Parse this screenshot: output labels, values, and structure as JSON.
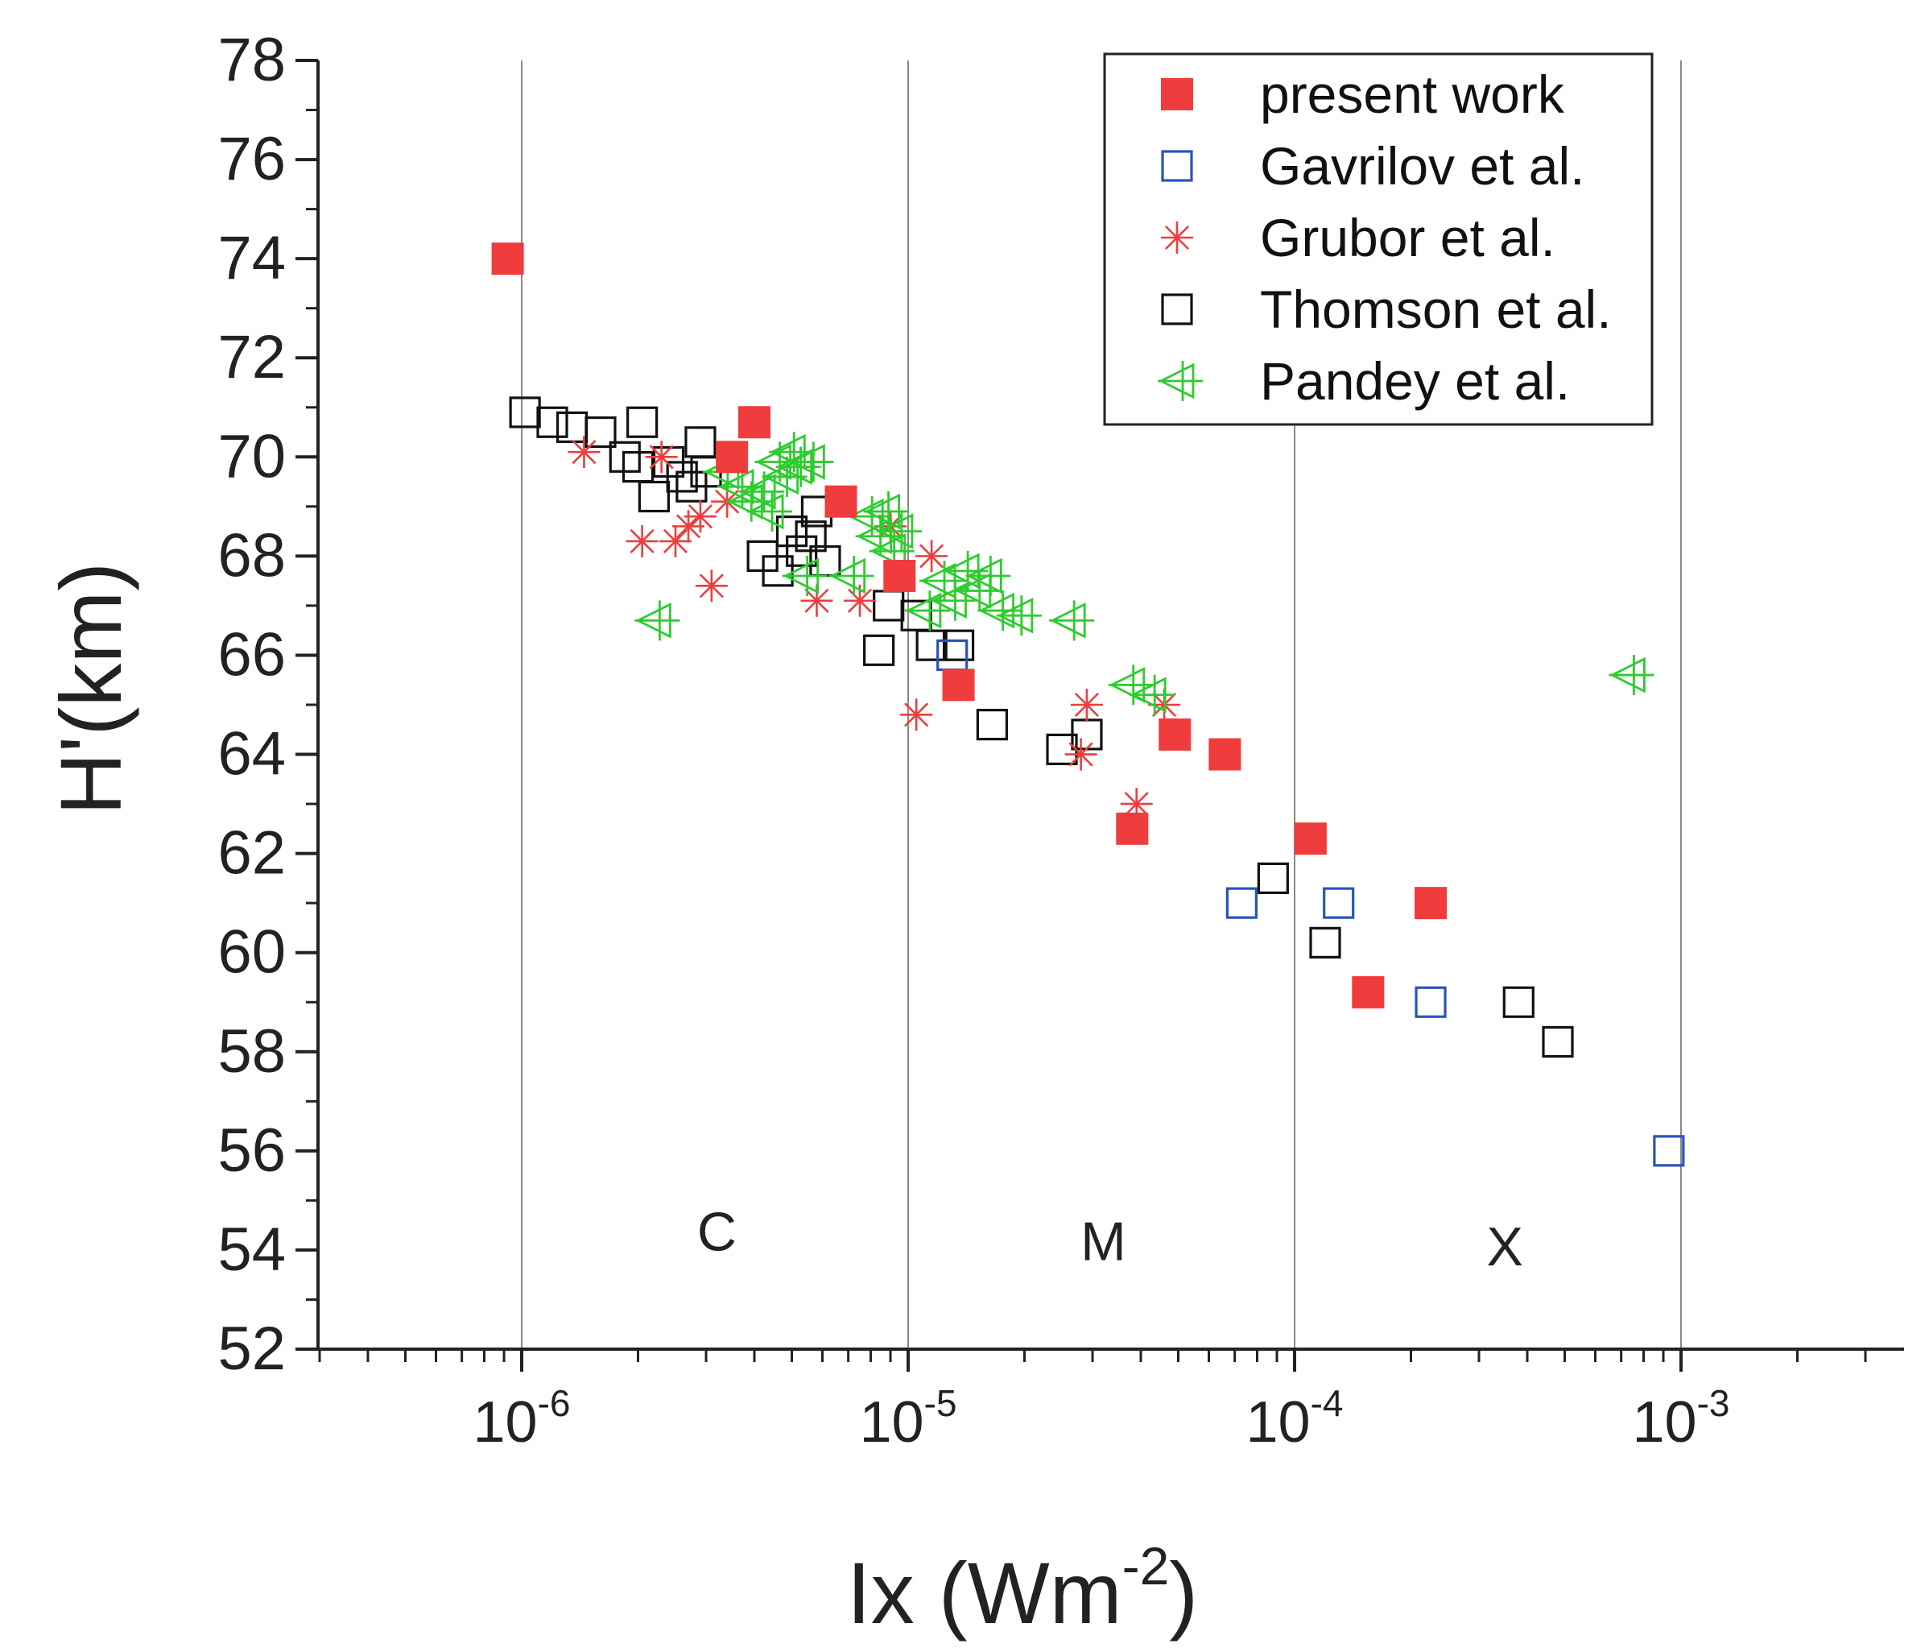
{
  "chart_data": {
    "type": "scatter",
    "title": "",
    "xlabel": "Ix  (Wm-2)",
    "xlabel_base": "Ix  (Wm",
    "xlabel_sup": "-2",
    "xlabel_end": ")",
    "ylabel": "H'(km)",
    "x_scale": "log",
    "xlim": [
      3e-07,
      0.004
    ],
    "ylim": [
      52,
      78
    ],
    "x_ticks": [
      {
        "value": 1e-06,
        "base": "10",
        "exp": "-6"
      },
      {
        "value": 1e-05,
        "base": "10",
        "exp": "-5"
      },
      {
        "value": 0.0001,
        "base": "10",
        "exp": "-4"
      },
      {
        "value": 0.001,
        "base": "10",
        "exp": "-3"
      }
    ],
    "y_ticks": [
      52,
      54,
      56,
      58,
      60,
      62,
      64,
      66,
      68,
      70,
      72,
      74,
      76,
      78
    ],
    "vertical_gridlines": [
      1e-06,
      1e-05,
      0.0001,
      0.001
    ],
    "region_labels": [
      {
        "text": "C",
        "x": 3.2e-06,
        "y": 54.4
      },
      {
        "text": "M",
        "x": 3.2e-05,
        "y": 54.2
      },
      {
        "text": "X",
        "x": 0.00035,
        "y": 54.1
      }
    ],
    "legend_position": "top-right",
    "series": [
      {
        "name": "present work",
        "marker": "filled-square",
        "color": "#f03c3c",
        "points": [
          {
            "x": 9.2e-07,
            "y": 74.0
          },
          {
            "x": 3.5e-06,
            "y": 70.0
          },
          {
            "x": 4e-06,
            "y": 70.7
          },
          {
            "x": 6.7e-06,
            "y": 69.1
          },
          {
            "x": 9.5e-06,
            "y": 67.6
          },
          {
            "x": 1.35e-05,
            "y": 65.4
          },
          {
            "x": 3.8e-05,
            "y": 62.5
          },
          {
            "x": 4.9e-05,
            "y": 64.4
          },
          {
            "x": 6.6e-05,
            "y": 64.0
          },
          {
            "x": 0.00011,
            "y": 62.3
          },
          {
            "x": 0.000155,
            "y": 59.2
          },
          {
            "x": 0.000225,
            "y": 61.0
          }
        ]
      },
      {
        "name": "Gavrilov et al.",
        "marker": "open-square",
        "color": "#2a52be",
        "points": [
          {
            "x": 1.3e-05,
            "y": 66.0
          },
          {
            "x": 7.3e-05,
            "y": 61.0
          },
          {
            "x": 0.00013,
            "y": 61.0
          },
          {
            "x": 0.000225,
            "y": 59.0
          },
          {
            "x": 0.00093,
            "y": 56.0
          }
        ]
      },
      {
        "name": "Grubor et al.",
        "marker": "asterisk",
        "color": "#f03c3c",
        "points": [
          {
            "x": 1.45e-06,
            "y": 70.1
          },
          {
            "x": 2.05e-06,
            "y": 68.3
          },
          {
            "x": 2.3e-06,
            "y": 70.0
          },
          {
            "x": 2.5e-06,
            "y": 68.3
          },
          {
            "x": 2.7e-06,
            "y": 68.6
          },
          {
            "x": 2.9e-06,
            "y": 68.8
          },
          {
            "x": 3.1e-06,
            "y": 67.4
          },
          {
            "x": 3.4e-06,
            "y": 69.1
          },
          {
            "x": 5.8e-06,
            "y": 67.1
          },
          {
            "x": 7.5e-06,
            "y": 67.1
          },
          {
            "x": 9e-06,
            "y": 68.6
          },
          {
            "x": 1.05e-05,
            "y": 64.8
          },
          {
            "x": 1.15e-05,
            "y": 68.0
          },
          {
            "x": 2.8e-05,
            "y": 64.0
          },
          {
            "x": 2.9e-05,
            "y": 65.0
          },
          {
            "x": 3.9e-05,
            "y": 63.0
          },
          {
            "x": 4.6e-05,
            "y": 65.0
          }
        ]
      },
      {
        "name": "Thomson et al.",
        "marker": "open-square",
        "color": "#111111",
        "points": [
          {
            "x": 1.02e-06,
            "y": 70.9
          },
          {
            "x": 1.2e-06,
            "y": 70.7
          },
          {
            "x": 1.35e-06,
            "y": 70.6
          },
          {
            "x": 1.6e-06,
            "y": 70.5
          },
          {
            "x": 1.85e-06,
            "y": 70.0
          },
          {
            "x": 2.05e-06,
            "y": 70.7
          },
          {
            "x": 2e-06,
            "y": 69.8
          },
          {
            "x": 2.2e-06,
            "y": 69.2
          },
          {
            "x": 2.4e-06,
            "y": 69.9
          },
          {
            "x": 2.6e-06,
            "y": 69.6
          },
          {
            "x": 2.75e-06,
            "y": 69.4
          },
          {
            "x": 2.9e-06,
            "y": 70.3
          },
          {
            "x": 3e-06,
            "y": 69.7
          },
          {
            "x": 4.2e-06,
            "y": 68.0
          },
          {
            "x": 4.6e-06,
            "y": 67.7
          },
          {
            "x": 5e-06,
            "y": 68.5
          },
          {
            "x": 5.3e-06,
            "y": 68.1
          },
          {
            "x": 5.6e-06,
            "y": 68.4
          },
          {
            "x": 5.8e-06,
            "y": 68.9
          },
          {
            "x": 6.1e-06,
            "y": 67.9
          },
          {
            "x": 8.4e-06,
            "y": 66.1
          },
          {
            "x": 8.9e-06,
            "y": 67.0
          },
          {
            "x": 1.05e-05,
            "y": 66.8
          },
          {
            "x": 1.15e-05,
            "y": 66.2
          },
          {
            "x": 1.35e-05,
            "y": 66.2
          },
          {
            "x": 1.65e-05,
            "y": 64.6
          },
          {
            "x": 2.5e-05,
            "y": 64.1
          },
          {
            "x": 2.9e-05,
            "y": 64.4
          },
          {
            "x": 8.8e-05,
            "y": 61.5
          },
          {
            "x": 0.00012,
            "y": 60.2
          },
          {
            "x": 0.00038,
            "y": 59.0
          },
          {
            "x": 0.00048,
            "y": 58.2
          }
        ]
      },
      {
        "name": "Pandey et al.",
        "marker": "left-triangle-plus",
        "color": "#2ecc2e",
        "points": [
          {
            "x": 2.2e-06,
            "y": 66.7
          },
          {
            "x": 3.3e-06,
            "y": 69.7
          },
          {
            "x": 3.6e-06,
            "y": 69.4
          },
          {
            "x": 3.8e-06,
            "y": 69.1
          },
          {
            "x": 4.1e-06,
            "y": 69.3
          },
          {
            "x": 4.3e-06,
            "y": 68.9
          },
          {
            "x": 4.5e-06,
            "y": 69.9
          },
          {
            "x": 4.7e-06,
            "y": 69.6
          },
          {
            "x": 4.9e-06,
            "y": 70.1
          },
          {
            "x": 5.1e-06,
            "y": 69.8
          },
          {
            "x": 5.3e-06,
            "y": 67.6
          },
          {
            "x": 5.5e-06,
            "y": 69.9
          },
          {
            "x": 7e-06,
            "y": 67.6
          },
          {
            "x": 7.8e-06,
            "y": 68.8
          },
          {
            "x": 8.2e-06,
            "y": 68.4
          },
          {
            "x": 8.6e-06,
            "y": 68.9
          },
          {
            "x": 8.9e-06,
            "y": 68.1
          },
          {
            "x": 9.3e-06,
            "y": 68.5
          },
          {
            "x": 1.1e-05,
            "y": 66.9
          },
          {
            "x": 1.2e-05,
            "y": 67.5
          },
          {
            "x": 1.28e-05,
            "y": 67.1
          },
          {
            "x": 1.38e-05,
            "y": 67.7
          },
          {
            "x": 1.48e-05,
            "y": 67.3
          },
          {
            "x": 1.58e-05,
            "y": 67.6
          },
          {
            "x": 1.7e-05,
            "y": 66.9
          },
          {
            "x": 1.9e-05,
            "y": 66.8
          },
          {
            "x": 2.6e-05,
            "y": 66.7
          },
          {
            "x": 3.7e-05,
            "y": 65.4
          },
          {
            "x": 4.2e-05,
            "y": 65.2
          },
          {
            "x": 0.00073,
            "y": 65.6
          }
        ]
      }
    ]
  }
}
